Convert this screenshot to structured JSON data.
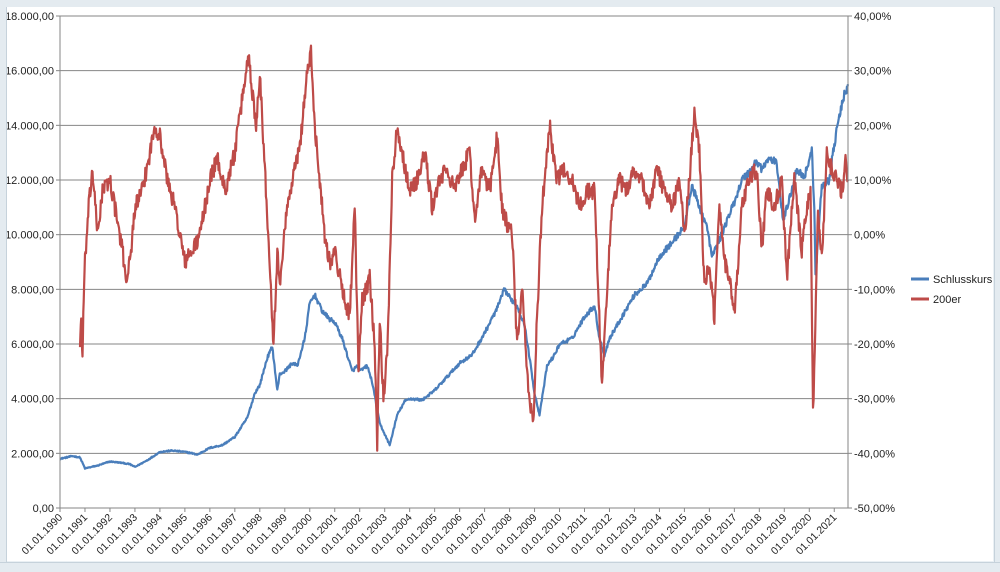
{
  "chart_data": {
    "type": "line",
    "title": "",
    "xlabel": "",
    "ylabel": "",
    "x_ticks": [
      "01.01.1990",
      "01.01.1991",
      "01.01.1992",
      "01.01.1993",
      "01.01.1994",
      "01.01.1995",
      "01.01.1996",
      "01.01.1997",
      "01.01.1998",
      "01.01.1999",
      "01.01.2000",
      "01.01.2001",
      "01.01.2002",
      "01.01.2003",
      "01.01.2004",
      "01.01.2005",
      "01.01.2006",
      "01.01.2007",
      "01.01.2008",
      "01.01.2009",
      "01.01.2010",
      "01.01.2011",
      "01.01.2012",
      "01.01.2013",
      "01.01.2014",
      "01.01.2015",
      "01.01.2016",
      "01.01.2017",
      "01.01.2018",
      "01.01.2019",
      "01.01.2020",
      "01.01.2021"
    ],
    "x_range": [
      1990.0,
      2021.55
    ],
    "y_left": {
      "min": 0,
      "max": 18000,
      "step": 2000,
      "tick_labels": [
        "0,00",
        "2.000,00",
        "4.000,00",
        "6.000,00",
        "8.000,00",
        "10.000,00",
        "12.000,00",
        "14.000,00",
        "16.000,00",
        "18.000,00"
      ]
    },
    "y_right": {
      "min": -50,
      "max": 40,
      "step": 10,
      "unit": "%",
      "tick_labels": [
        "-50,00%",
        "-40,00%",
        "-30,00%",
        "-20,00%",
        "-10,00%",
        "0,00%",
        "10,00%",
        "20,00%",
        "30,00%",
        "40,00%"
      ]
    },
    "grid": true,
    "legend_position": "right",
    "colors": {
      "series1": "#4a7ebb",
      "series2": "#be4b48"
    },
    "series": [
      {
        "name": "Schlusskurs",
        "axis": "left",
        "x": [
          1990.0,
          1990.5,
          1990.8,
          1991.0,
          1991.5,
          1992.0,
          1992.5,
          1992.8,
          1993.0,
          1993.5,
          1994.0,
          1994.5,
          1995.0,
          1995.3,
          1995.5,
          1996.0,
          1996.5,
          1997.0,
          1997.5,
          1997.8,
          1998.0,
          1998.3,
          1998.5,
          1998.7,
          1998.8,
          1999.0,
          1999.3,
          1999.5,
          1999.8,
          2000.0,
          2000.2,
          2000.5,
          2000.8,
          2001.0,
          2001.3,
          2001.7,
          2001.9,
          2002.0,
          2002.3,
          2002.5,
          2002.8,
          2003.0,
          2003.2,
          2003.5,
          2003.8,
          2004.0,
          2004.5,
          2005.0,
          2005.5,
          2006.0,
          2006.5,
          2007.0,
          2007.5,
          2007.8,
          2008.0,
          2008.3,
          2008.6,
          2008.8,
          2009.0,
          2009.2,
          2009.5,
          2009.8,
          2010.0,
          2010.5,
          2011.0,
          2011.4,
          2011.6,
          2011.8,
          2012.0,
          2012.5,
          2013.0,
          2013.5,
          2014.0,
          2014.5,
          2015.0,
          2015.3,
          2015.6,
          2015.9,
          2016.1,
          2016.4,
          2016.7,
          2017.0,
          2017.3,
          2017.6,
          2017.9,
          2018.1,
          2018.4,
          2018.7,
          2018.95,
          2019.2,
          2019.5,
          2019.8,
          2020.1,
          2020.2,
          2020.25,
          2020.5,
          2020.8,
          2021.0,
          2021.2,
          2021.4,
          2021.55
        ],
        "y": [
          1800,
          1900,
          1850,
          1450,
          1550,
          1700,
          1650,
          1600,
          1500,
          1750,
          2050,
          2100,
          2050,
          2000,
          1950,
          2200,
          2300,
          2600,
          3300,
          4200,
          4500,
          5500,
          5900,
          4300,
          4900,
          5000,
          5300,
          5200,
          6200,
          7500,
          7800,
          7200,
          6900,
          6800,
          6200,
          5000,
          5200,
          5000,
          5200,
          4600,
          3100,
          2700,
          2300,
          3400,
          3900,
          4000,
          3950,
          4300,
          4800,
          5300,
          5600,
          6400,
          7300,
          8000,
          7700,
          7400,
          6700,
          5500,
          4200,
          3400,
          5200,
          5600,
          6000,
          6200,
          7000,
          7400,
          6200,
          5600,
          6200,
          7000,
          7800,
          8200,
          9200,
          9700,
          10300,
          11800,
          11000,
          10300,
          9200,
          9800,
          10500,
          11200,
          12000,
          12300,
          12700,
          12400,
          12800,
          12600,
          10500,
          11300,
          12400,
          12100,
          13100,
          11000,
          8500,
          11800,
          12000,
          13300,
          14300,
          15100,
          15500
        ]
      },
      {
        "name": "200er",
        "axis": "right",
        "x": [
          1990.8,
          1990.85,
          1990.9,
          1990.95,
          1991.0,
          1991.15,
          1991.3,
          1991.5,
          1991.7,
          1992.0,
          1992.2,
          1992.5,
          1992.65,
          1992.8,
          1993.0,
          1993.3,
          1993.6,
          1993.8,
          1994.0,
          1994.3,
          1994.6,
          1994.8,
          1995.0,
          1995.3,
          1995.6,
          1996.0,
          1996.3,
          1996.6,
          1997.0,
          1997.3,
          1997.55,
          1997.7,
          1997.85,
          1998.0,
          1998.2,
          1998.4,
          1998.55,
          1998.7,
          1998.8,
          1999.0,
          1999.3,
          1999.6,
          1999.9,
          2000.05,
          2000.2,
          2000.4,
          2000.6,
          2000.8,
          2001.0,
          2001.3,
          2001.6,
          2001.8,
          2001.95,
          2002.1,
          2002.4,
          2002.6,
          2002.7,
          2002.8,
          2002.95,
          2003.1,
          2003.3,
          2003.5,
          2003.7,
          2004.0,
          2004.3,
          2004.6,
          2004.9,
          2005.2,
          2005.5,
          2005.8,
          2006.1,
          2006.4,
          2006.6,
          2006.9,
          2007.2,
          2007.5,
          2007.7,
          2007.9,
          2008.1,
          2008.3,
          2008.5,
          2008.7,
          2008.8,
          2008.95,
          2009.1,
          2009.3,
          2009.6,
          2009.9,
          2010.2,
          2010.5,
          2010.8,
          2011.1,
          2011.4,
          2011.55,
          2011.7,
          2011.9,
          2012.1,
          2012.4,
          2012.7,
          2013.0,
          2013.3,
          2013.6,
          2013.9,
          2014.2,
          2014.5,
          2014.8,
          2015.0,
          2015.2,
          2015.4,
          2015.6,
          2015.8,
          2016.0,
          2016.2,
          2016.4,
          2016.6,
          2016.8,
          2017.0,
          2017.3,
          2017.6,
          2017.9,
          2018.1,
          2018.3,
          2018.6,
          2018.9,
          2019.1,
          2019.4,
          2019.7,
          2019.9,
          2020.05,
          2020.15,
          2020.22,
          2020.35,
          2020.5,
          2020.7,
          2020.9,
          2021.1,
          2021.3,
          2021.45,
          2021.55
        ],
        "y": [
          -20,
          -15,
          -22,
          -12,
          -5,
          5,
          12,
          0,
          8,
          10,
          5,
          -3,
          -8,
          -5,
          5,
          8,
          15,
          20,
          18,
          10,
          5,
          0,
          -5,
          -3,
          0,
          10,
          14,
          8,
          15,
          25,
          33,
          26,
          20,
          30,
          12,
          -5,
          -20,
          -3,
          -10,
          2,
          10,
          16,
          30,
          33,
          20,
          10,
          0,
          -5,
          -3,
          -10,
          -15,
          5,
          -25,
          -12,
          -8,
          -20,
          -38,
          -15,
          -30,
          -22,
          10,
          20,
          15,
          8,
          10,
          15,
          5,
          10,
          12,
          8,
          12,
          15,
          3,
          12,
          8,
          18,
          5,
          2,
          0,
          -20,
          -10,
          -25,
          -30,
          -35,
          -15,
          5,
          20,
          10,
          12,
          10,
          5,
          8,
          8,
          -10,
          -28,
          -10,
          5,
          10,
          8,
          12,
          10,
          5,
          12,
          8,
          5,
          10,
          0,
          10,
          23,
          15,
          -10,
          -5,
          -15,
          5,
          -5,
          -8,
          -15,
          5,
          10,
          12,
          -3,
          8,
          5,
          10,
          -8,
          10,
          -3,
          5,
          8,
          -33,
          -20,
          5,
          -5,
          15,
          12,
          10,
          8,
          13,
          10
        ]
      }
    ]
  }
}
